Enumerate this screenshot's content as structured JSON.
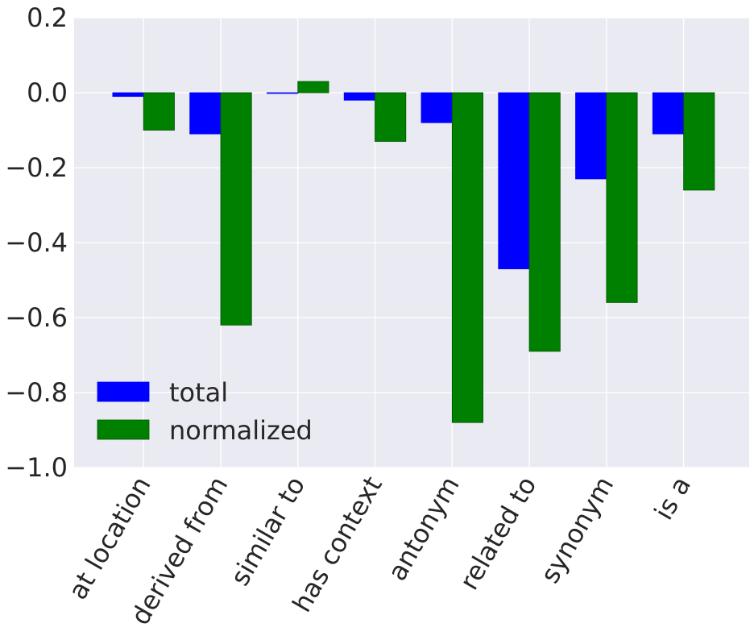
{
  "chart_data": {
    "type": "bar",
    "categories": [
      "at location",
      "derived from",
      "similar to",
      "has context",
      "antonym",
      "related to",
      "synonym",
      "is a"
    ],
    "series": [
      {
        "name": "total",
        "color": "#0000ff",
        "values": [
          -0.01,
          -0.11,
          -0.002,
          -0.02,
          -0.08,
          -0.47,
          -0.23,
          -0.11
        ]
      },
      {
        "name": "normalized",
        "color": "#008000",
        "values": [
          -0.1,
          -0.62,
          0.03,
          -0.13,
          -0.88,
          -0.69,
          -0.56,
          -0.26
        ]
      }
    ],
    "yticks": [
      0.2,
      0.0,
      -0.2,
      -0.4,
      -0.6,
      -0.8,
      -1.0
    ],
    "ytick_labels": [
      "0.2",
      "0.0",
      "−0.2",
      "−0.4",
      "−0.6",
      "−0.8",
      "−1.0"
    ],
    "ylim": [
      -1.0,
      0.2
    ],
    "xlim": [
      -0.5,
      8.25
    ],
    "grid": true,
    "legend_position": "lower-left",
    "background_color": "#eaeaf2",
    "grid_color": "#ffffff",
    "title": "",
    "xlabel": "",
    "ylabel": ""
  }
}
